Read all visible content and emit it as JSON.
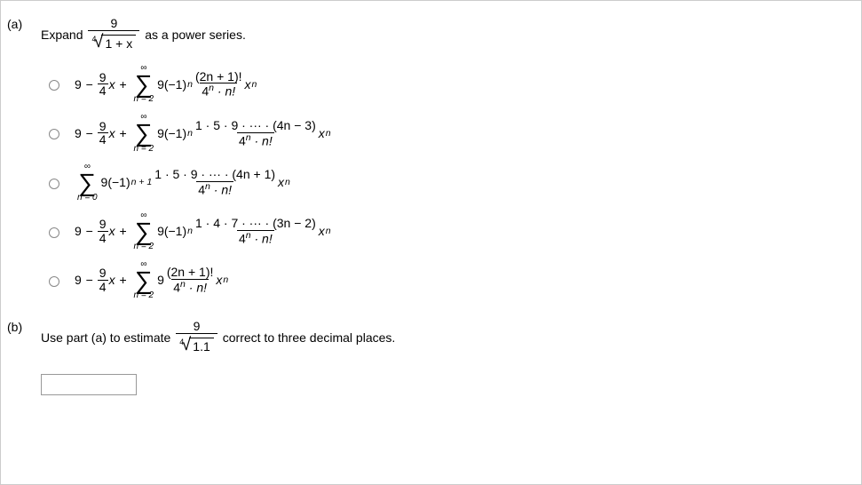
{
  "partA": {
    "label": "(a)",
    "promptLeft": "Expand",
    "promptRight": "as a power series.",
    "root": {
      "index": "4",
      "numerator": "9",
      "radicand": "1 + x"
    },
    "options": [
      {
        "lead": {
          "a": "9",
          "b": "9",
          "c": "4"
        },
        "sum": {
          "upper": "∞",
          "lower": "n = 2"
        },
        "coeff": "9(−1)",
        "coeffSup": "n",
        "fracNum": "(2n + 1)!",
        "fracDenA": "4",
        "fracDenSup": "n",
        "fracDenB": " · n!",
        "tail": "x",
        "tailSup": "n"
      },
      {
        "lead": {
          "a": "9",
          "b": "9",
          "c": "4"
        },
        "sum": {
          "upper": "∞",
          "lower": "n = 2"
        },
        "coeff": "9(−1)",
        "coeffSup": "n",
        "fracNum": "1 · 5 · 9 · ··· · (4n − 3)",
        "fracDenA": "4",
        "fracDenSup": "n",
        "fracDenB": " · n!",
        "tail": "x",
        "tailSup": "n"
      },
      {
        "lead": null,
        "sum": {
          "upper": "∞",
          "lower": "n = 0"
        },
        "coeff": "9(−1)",
        "coeffSup": "n + 1",
        "fracNum": "1 · 5 · 9 · ··· · (4n + 1)",
        "fracDenA": "4",
        "fracDenSup": "n",
        "fracDenB": " · n!",
        "tail": "x",
        "tailSup": "n"
      },
      {
        "lead": {
          "a": "9",
          "b": "9",
          "c": "4"
        },
        "sum": {
          "upper": "∞",
          "lower": "n = 2"
        },
        "coeff": "9(−1)",
        "coeffSup": "n",
        "fracNum": "1 · 4 · 7 · ··· · (3n − 2)",
        "fracDenA": "4",
        "fracDenSup": "n",
        "fracDenB": " · n!",
        "tail": "x",
        "tailSup": "n"
      },
      {
        "lead": {
          "a": "9",
          "b": "9",
          "c": "4"
        },
        "sum": {
          "upper": "∞",
          "lower": "n = 2"
        },
        "coeff": "9",
        "coeffSup": "",
        "fracNum": "(2n + 1)!",
        "fracDenA": "4",
        "fracDenSup": "n",
        "fracDenB": " · n!",
        "tail": "x",
        "tailSup": "n"
      }
    ]
  },
  "partB": {
    "label": "(b)",
    "promptLeft": "Use part (a) to estimate",
    "promptRight": "correct to three decimal places.",
    "root": {
      "index": "4",
      "numerator": "9",
      "radicand": "1.1"
    }
  },
  "style": {
    "borderColor": "#cccccc",
    "textColor": "#000000",
    "bgColor": "#ffffff",
    "fontFamily": "Arial, sans-serif",
    "baseFontSize": 14,
    "sigmaFontSize": 28,
    "subFontSize": 10
  }
}
